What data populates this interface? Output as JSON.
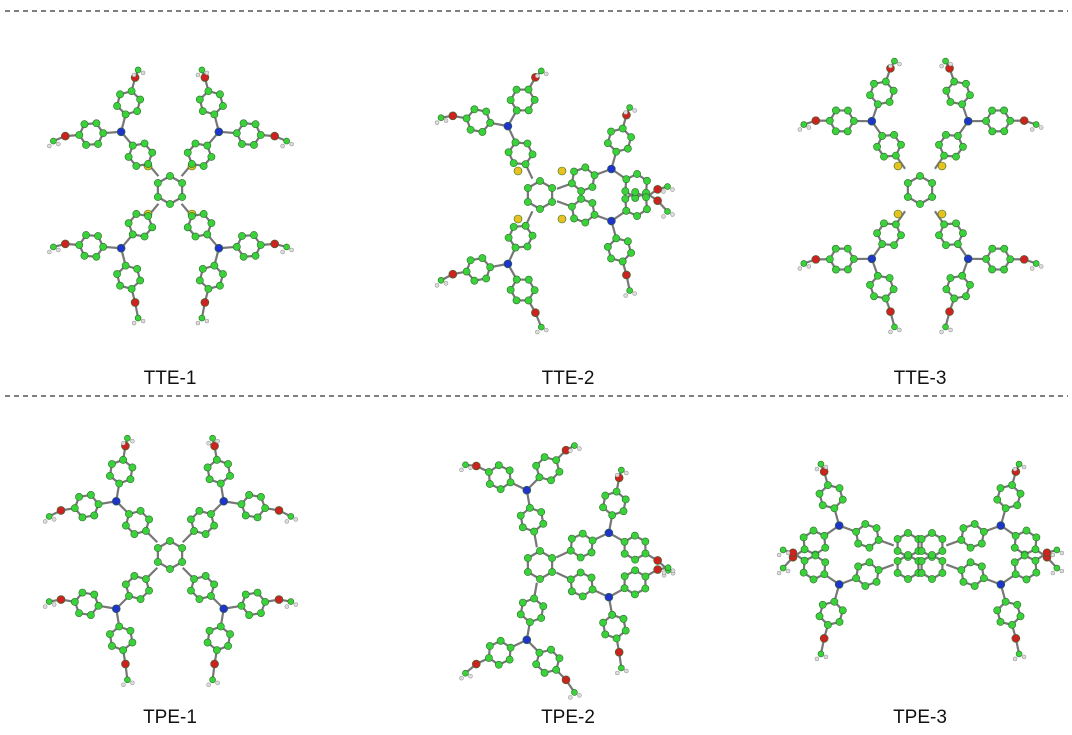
{
  "rows": [
    [
      "TTE-1",
      "TTE-2",
      "TTE-3"
    ],
    [
      "TPE-1",
      "TPE-2",
      "TPE-3"
    ]
  ]
}
